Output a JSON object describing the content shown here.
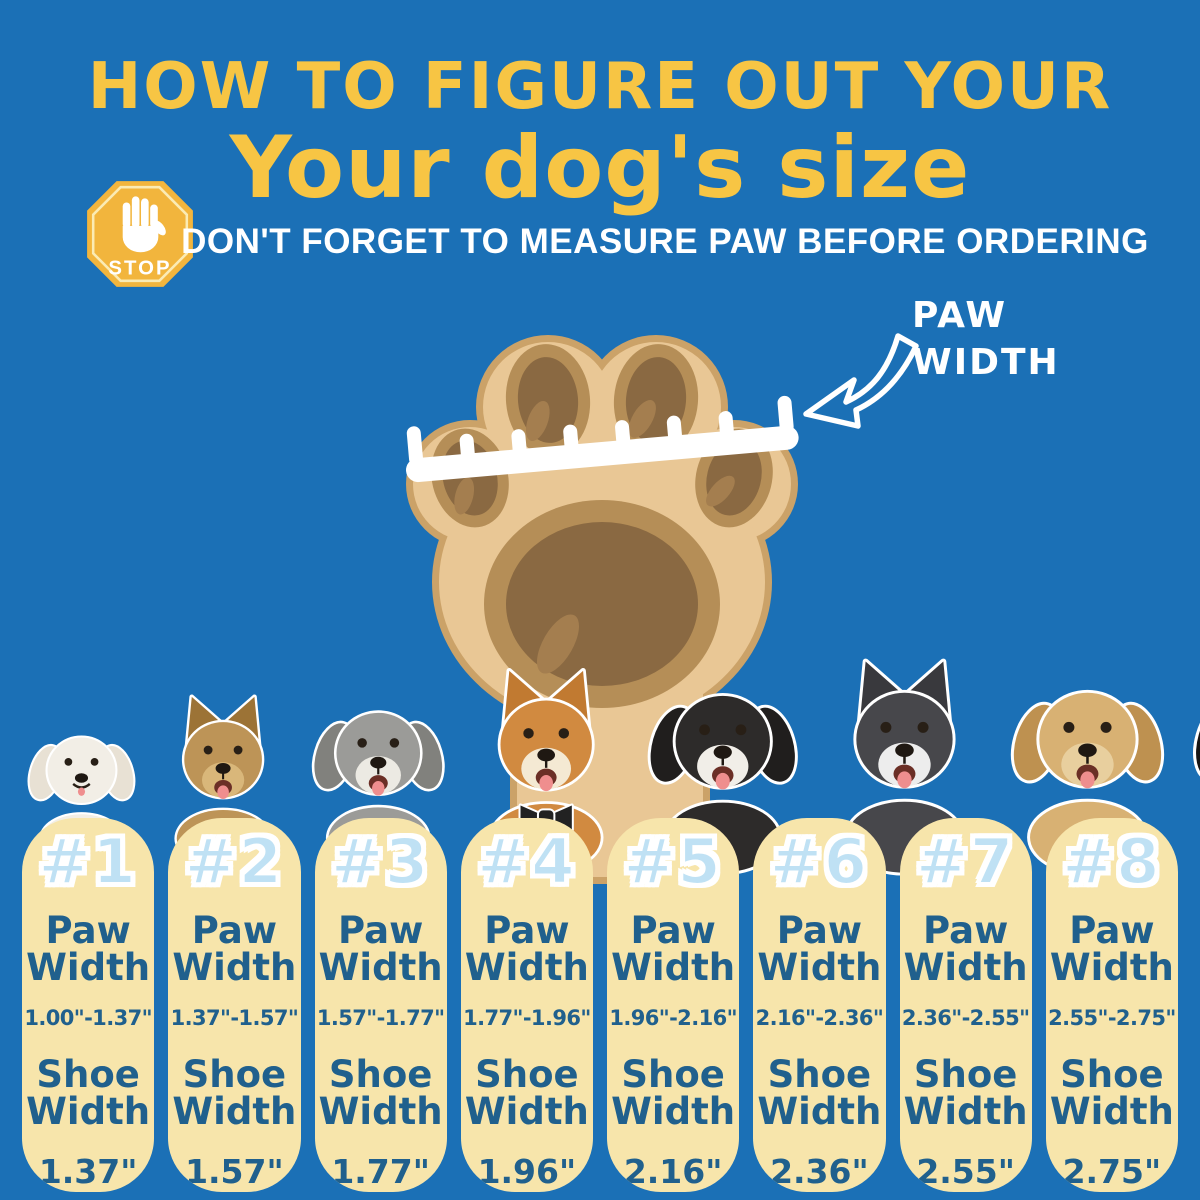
{
  "colors": {
    "background": "#1B70B6",
    "title_yellow": "#F7C544",
    "text_white": "#FFFFFF",
    "column_bg": "#F7E5AB",
    "navy_text": "#20608D",
    "size_number_blue": "#BFE1F4",
    "paw_body": "#E9C795",
    "paw_rim": "#CBA268",
    "pad_ring": "#B58E57",
    "pad_dark": "#8A6942",
    "pad_highlight": "#A47E4F",
    "stop_fill": "#F2B53D",
    "stop_inner_line": "#FBEBB4"
  },
  "header": {
    "title_line1": "HOW TO FIGURE OUT YOUR",
    "title_line2": "Your dog's size",
    "warning": "DON'T FORGET TO MEASURE PAW BEFORE ORDERING",
    "stop_label": "STOP"
  },
  "paw_diagram": {
    "label_line1": "PAW",
    "label_line2": "WIDTH"
  },
  "size_labels": {
    "paw_line1": "Paw",
    "paw_line2": "Width",
    "shoe_line1": "Shoe",
    "shoe_line2": "Width"
  },
  "sizes": [
    {
      "number": "#1",
      "paw_width_range": "1.00\"-1.37\"",
      "shoe_width": "1.37\"",
      "dog_breed": "bichon-frise"
    },
    {
      "number": "#2",
      "paw_width_range": "1.37\"-1.57\"",
      "shoe_width": "1.57\"",
      "dog_breed": "yorkshire-terrier"
    },
    {
      "number": "#3",
      "paw_width_range": "1.57\"-1.77\"",
      "shoe_width": "1.77\"",
      "dog_breed": "bearded-collie"
    },
    {
      "number": "#4",
      "paw_width_range": "1.77\"-1.96\"",
      "shoe_width": "1.96\"",
      "dog_breed": "shiba-inu"
    },
    {
      "number": "#5",
      "paw_width_range": "1.96\"-2.16\"",
      "shoe_width": "2.16\"",
      "dog_breed": "border-collie"
    },
    {
      "number": "#6",
      "paw_width_range": "2.16\"-2.36\"",
      "shoe_width": "2.36\"",
      "dog_breed": "siberian-husky"
    },
    {
      "number": "#7",
      "paw_width_range": "2.36\"-2.55\"",
      "shoe_width": "2.55\"",
      "dog_breed": "golden-retriever"
    },
    {
      "number": "#8",
      "paw_width_range": "2.55\"-2.75\"",
      "shoe_width": "2.75\"",
      "dog_breed": "rottweiler"
    }
  ],
  "dog_styles": {
    "bichon-frise": {
      "ear_style": "floppy",
      "fur_color": "#F2EEE6",
      "ear_color": "#E8E1D4",
      "muzzle_color": "",
      "mouth": "smile"
    },
    "yorkshire-terrier": {
      "ear_style": "pointy",
      "fur_color": "#BD9457",
      "ear_color": "#9C7336",
      "muzzle_color": "#D9B77A",
      "mouth": "open"
    },
    "bearded-collie": {
      "ear_style": "floppy",
      "fur_color": "#9B9B98",
      "ear_color": "#81817D",
      "muzzle_color": "#ECEAE3",
      "mouth": "open"
    },
    "shiba-inu": {
      "ear_style": "pointy",
      "fur_color": "#D18A40",
      "ear_color": "#C17A31",
      "muzzle_color": "#F4E9D3",
      "mouth": "open",
      "bowtie": true
    },
    "border-collie": {
      "ear_style": "floppy",
      "fur_color": "#2D2B2A",
      "ear_color": "#201E1D",
      "muzzle_color": "#F1EEE8",
      "mouth": "open"
    },
    "siberian-husky": {
      "ear_style": "pointy",
      "fur_color": "#47474B",
      "ear_color": "#39393D",
      "muzzle_color": "#EDEDED",
      "mouth": "open"
    },
    "golden-retriever": {
      "ear_style": "floppy",
      "fur_color": "#D8B173",
      "ear_color": "#BE9150",
      "muzzle_color": "#E8CF9E",
      "mouth": "open"
    },
    "rottweiler": {
      "ear_style": "floppy",
      "fur_color": "#262322",
      "ear_color": "#171514",
      "muzzle_color": "#AD7530",
      "mouth": "open",
      "eyebrows": true
    }
  }
}
